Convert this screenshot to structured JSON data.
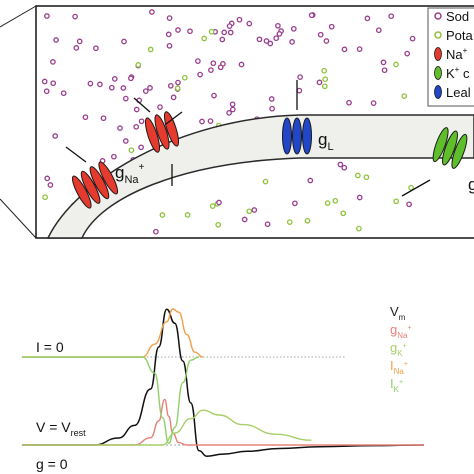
{
  "membrane_panel": {
    "legend": {
      "items": [
        {
          "label": "Sod",
          "marker": "circle",
          "color": "#9b3d8e"
        },
        {
          "label": "Pota",
          "marker": "circle",
          "color": "#8fc23c"
        },
        {
          "label": "Na",
          "sup": "+",
          "marker": "channel",
          "color": "#e53a2e"
        },
        {
          "label": "K",
          "sup": "+",
          "suffix": " c",
          "marker": "channel",
          "color": "#5fbf2a"
        },
        {
          "label": "Leal",
          "marker": "channel",
          "color": "#2146c7"
        }
      ]
    },
    "labels": {
      "gNa": {
        "base": "g",
        "sub": "Na",
        "sup": "+"
      },
      "gL": {
        "base": "g",
        "sub": "L"
      },
      "gK": {
        "base": "g"
      }
    },
    "colors": {
      "sodium": "#9b3d8e",
      "potassium": "#8fc23c",
      "na_channel": "#e53a2e",
      "k_channel": "#5fbf2a",
      "leak_channel": "#2146c7",
      "membrane_fill": "#efefec"
    }
  },
  "chart_data": {
    "type": "line",
    "left_labels": [
      {
        "name": "I = 0"
      },
      {
        "name": "V = V",
        "sub": "rest"
      },
      {
        "name": "g = 0"
      }
    ],
    "legend": [
      {
        "base": "V",
        "sub": "m",
        "sup": "",
        "color": "#222222"
      },
      {
        "base": "g",
        "sub": "Na",
        "sup": "+",
        "color": "#e8807a"
      },
      {
        "base": "g",
        "sub": "K",
        "sup": "+",
        "color": "#a7cf6a"
      },
      {
        "base": "I",
        "sub": "Na",
        "sup": "+",
        "color": "#f0a04a"
      },
      {
        "base": "I",
        "sub": "K",
        "sup": "+",
        "color": "#8fd06a"
      }
    ],
    "x_range": [
      0,
      100
    ],
    "series": [
      {
        "name": "Vm",
        "color": "#111111",
        "points": [
          [
            0,
            0
          ],
          [
            18,
            0
          ],
          [
            24,
            0.05
          ],
          [
            28,
            0.14
          ],
          [
            32,
            0.4
          ],
          [
            34,
            0.7
          ],
          [
            36,
            0.97
          ],
          [
            38,
            0.87
          ],
          [
            40,
            0.6
          ],
          [
            42,
            0.3
          ],
          [
            44,
            -0.04
          ],
          [
            46,
            -0.08
          ],
          [
            50,
            -0.065
          ],
          [
            56,
            -0.045
          ],
          [
            64,
            -0.025
          ],
          [
            74,
            -0.012
          ],
          [
            88,
            -0.004
          ],
          [
            100,
            0
          ]
        ]
      },
      {
        "name": "gNa",
        "color": "#e8807a",
        "points": [
          [
            0,
            0
          ],
          [
            28,
            0
          ],
          [
            32,
            0.06
          ],
          [
            34,
            0.2
          ],
          [
            35.5,
            0.38
          ],
          [
            36.5,
            0.24
          ],
          [
            37.5,
            0.1
          ],
          [
            39,
            0.02
          ],
          [
            41,
            0
          ],
          [
            100,
            0
          ]
        ]
      },
      {
        "name": "gK",
        "color": "#a7cf6a",
        "points": [
          [
            0,
            0
          ],
          [
            35,
            0
          ],
          [
            38,
            0.1
          ],
          [
            42,
            0.22
          ],
          [
            45,
            0.29
          ],
          [
            49,
            0.25
          ],
          [
            55,
            0.17
          ],
          [
            63,
            0.09
          ],
          [
            72,
            0.04
          ],
          [
            82,
            0.015
          ],
          [
            92,
            0.004
          ],
          [
            100,
            0
          ]
        ]
      },
      {
        "name": "INa",
        "color": "#f0a04a",
        "points": [
          [
            0,
            0
          ],
          [
            30,
            0
          ],
          [
            33,
            0.04
          ],
          [
            36,
            0.11
          ],
          [
            37.5,
            0.15
          ],
          [
            39,
            0.14
          ],
          [
            41,
            0.07
          ],
          [
            43,
            0.015
          ],
          [
            45,
            0
          ],
          [
            100,
            0
          ]
        ]
      },
      {
        "name": "IK",
        "color": "#8fd06a",
        "points": [
          [
            0,
            0
          ],
          [
            30,
            0
          ],
          [
            33,
            -0.05
          ],
          [
            35,
            -0.19
          ],
          [
            36.5,
            -0.27
          ],
          [
            38,
            -0.22
          ],
          [
            40,
            -0.08
          ],
          [
            42,
            -0.01
          ],
          [
            44,
            0
          ],
          [
            100,
            0
          ]
        ]
      }
    ]
  }
}
